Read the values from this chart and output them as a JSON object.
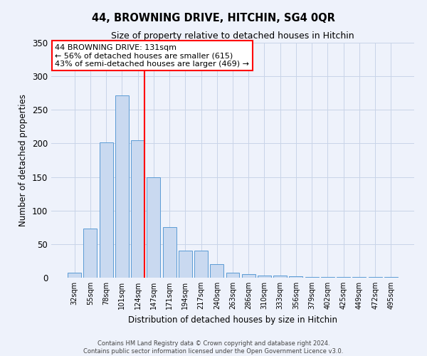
{
  "title": "44, BROWNING DRIVE, HITCHIN, SG4 0QR",
  "subtitle": "Size of property relative to detached houses in Hitchin",
  "xlabel": "Distribution of detached houses by size in Hitchin",
  "ylabel": "Number of detached properties",
  "bar_labels": [
    "32sqm",
    "55sqm",
    "78sqm",
    "101sqm",
    "124sqm",
    "147sqm",
    "171sqm",
    "194sqm",
    "217sqm",
    "240sqm",
    "263sqm",
    "286sqm",
    "310sqm",
    "333sqm",
    "356sqm",
    "379sqm",
    "402sqm",
    "425sqm",
    "449sqm",
    "472sqm",
    "495sqm"
  ],
  "bar_values": [
    7,
    73,
    201,
    272,
    205,
    150,
    75,
    40,
    40,
    20,
    7,
    5,
    3,
    3,
    2,
    1,
    1,
    1,
    1,
    1,
    1
  ],
  "bar_color": "#c9d9f0",
  "bar_edge_color": "#5b9bd5",
  "ylim": [
    0,
    350
  ],
  "yticks": [
    0,
    50,
    100,
    150,
    200,
    250,
    300,
    350
  ],
  "vline_x": 4.42,
  "vline_color": "red",
  "annotation_title": "44 BROWNING DRIVE: 131sqm",
  "annotation_line1": "← 56% of detached houses are smaller (615)",
  "annotation_line2": "43% of semi-detached houses are larger (469) →",
  "annotation_box_color": "#ffffff",
  "annotation_box_edge": "red",
  "footer_line1": "Contains HM Land Registry data © Crown copyright and database right 2024.",
  "footer_line2": "Contains public sector information licensed under the Open Government Licence v3.0.",
  "background_color": "#eef2fb",
  "grid_color": "#c8d4e8"
}
